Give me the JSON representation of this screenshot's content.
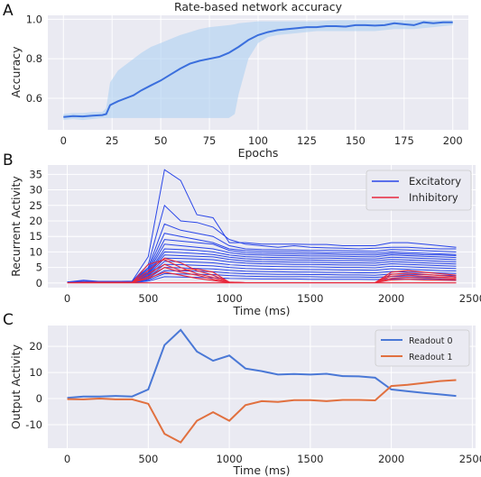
{
  "panels": [
    "A",
    "B",
    "C"
  ],
  "chart_data": [
    {
      "id": "A",
      "type": "line",
      "title": "Rate-based network accuracy",
      "xlabel": "Epochs",
      "ylabel": "Accuracy",
      "xlim": [
        -8,
        208
      ],
      "ylim": [
        0.44,
        1.02
      ],
      "xticks": [
        0,
        25,
        50,
        75,
        100,
        125,
        150,
        175,
        200
      ],
      "yticks": [
        0.6,
        0.8,
        1.0
      ],
      "ytick_labels": [
        "0.6",
        "0.8",
        "1.0"
      ],
      "grid": true,
      "series": [
        {
          "color": "#3b6fdd",
          "x": [
            0,
            5,
            10,
            15,
            20,
            22,
            24,
            28,
            32,
            36,
            40,
            45,
            50,
            55,
            60,
            65,
            70,
            75,
            80,
            85,
            90,
            95,
            100,
            105,
            110,
            115,
            120,
            125,
            130,
            135,
            140,
            145,
            150,
            155,
            160,
            165,
            170,
            175,
            180,
            185,
            190,
            195,
            200
          ],
          "y": [
            0.505,
            0.51,
            0.508,
            0.512,
            0.515,
            0.52,
            0.565,
            0.585,
            0.6,
            0.615,
            0.64,
            0.665,
            0.69,
            0.72,
            0.75,
            0.775,
            0.79,
            0.8,
            0.81,
            0.83,
            0.86,
            0.895,
            0.92,
            0.935,
            0.945,
            0.95,
            0.955,
            0.96,
            0.96,
            0.965,
            0.965,
            0.963,
            0.97,
            0.97,
            0.968,
            0.97,
            0.98,
            0.975,
            0.97,
            0.985,
            0.98,
            0.985,
            0.985
          ],
          "band_x": [
            0,
            5,
            10,
            15,
            20,
            22,
            24,
            28,
            32,
            36,
            40,
            45,
            50,
            55,
            60,
            65,
            70,
            75,
            80,
            85,
            88,
            90,
            95,
            100,
            105,
            110,
            120,
            130,
            140,
            150,
            160,
            170,
            180,
            190,
            200
          ],
          "band_lo": [
            0.49,
            0.495,
            0.49,
            0.495,
            0.5,
            0.5,
            0.5,
            0.5,
            0.5,
            0.5,
            0.5,
            0.5,
            0.5,
            0.5,
            0.5,
            0.5,
            0.5,
            0.5,
            0.5,
            0.5,
            0.52,
            0.62,
            0.8,
            0.88,
            0.91,
            0.92,
            0.93,
            0.94,
            0.94,
            0.94,
            0.94,
            0.95,
            0.95,
            0.96,
            0.97
          ],
          "band_hi": [
            0.52,
            0.525,
            0.525,
            0.53,
            0.53,
            0.55,
            0.68,
            0.74,
            0.77,
            0.8,
            0.83,
            0.86,
            0.88,
            0.9,
            0.92,
            0.935,
            0.95,
            0.96,
            0.965,
            0.97,
            0.975,
            0.98,
            0.985,
            0.99,
            0.99,
            0.99,
            0.99,
            0.99,
            0.995,
            0.995,
            0.995,
            0.995,
            0.995,
            0.995,
            0.995
          ]
        }
      ]
    },
    {
      "id": "B",
      "type": "line",
      "xlabel": "Time (ms)",
      "ylabel": "Recurrent Activity",
      "xlim": [
        -120,
        2520
      ],
      "ylim": [
        -1.5,
        38
      ],
      "xticks": [
        0,
        500,
        1000,
        1500,
        2000,
        2500
      ],
      "yticks": [
        0,
        5,
        10,
        15,
        20,
        25,
        30,
        35
      ],
      "grid": true,
      "legend": "top-right",
      "x": [
        0,
        100,
        200,
        300,
        400,
        500,
        600,
        700,
        800,
        900,
        1000,
        1100,
        1200,
        1300,
        1400,
        1500,
        1600,
        1700,
        1800,
        1900,
        2000,
        2100,
        2200,
        2300,
        2400
      ],
      "series": [
        {
          "name": "Excitatory",
          "color": "#2a46e8",
          "values": [
            0.3,
            0.9,
            0.5,
            0.5,
            0.6,
            8.5,
            36.5,
            33,
            22,
            21,
            13,
            13,
            12.5,
            12.5,
            12.5,
            12.4,
            12.4,
            12,
            12,
            12,
            13,
            13,
            12.5,
            12,
            11.5
          ]
        },
        {
          "color": "#2a46e8",
          "values": [
            0.3,
            0.5,
            0.5,
            0.5,
            0.5,
            6,
            25,
            20,
            19.5,
            18,
            14,
            12.5,
            12,
            11.5,
            12,
            11.5,
            11.3,
            11.2,
            11,
            11.2,
            11.5,
            11.5,
            11.2,
            11,
            11
          ]
        },
        {
          "color": "#2a46e8",
          "values": [
            0.3,
            0.5,
            0.5,
            0.5,
            0.5,
            5,
            19,
            17,
            16,
            15,
            12,
            11,
            10.8,
            10.7,
            10.6,
            10.5,
            10.5,
            10.4,
            10.3,
            10.2,
            10.8,
            10.6,
            10.4,
            10.2,
            10
          ]
        },
        {
          "color": "#2a46e8",
          "values": [
            0.3,
            0.5,
            0.5,
            0.5,
            0.5,
            4.5,
            16,
            15,
            14,
            13,
            11,
            10.4,
            10.2,
            10.1,
            10,
            9.9,
            9.8,
            9.8,
            9.7,
            9.6,
            10,
            9.8,
            9.6,
            9.4,
            9.2
          ]
        },
        {
          "color": "#2a46e8",
          "values": [
            0.3,
            0.5,
            0.5,
            0.5,
            0.5,
            4,
            14,
            13.5,
            13,
            12.5,
            10.5,
            9.8,
            9.6,
            9.5,
            9.4,
            9.3,
            9.3,
            9.2,
            9.1,
            9,
            9.5,
            9.3,
            9.1,
            9,
            8.8
          ]
        },
        {
          "color": "#2a46e8",
          "values": [
            0.3,
            0.5,
            0.5,
            0.5,
            0.5,
            3.5,
            12.5,
            12,
            11.5,
            11,
            9.8,
            9.2,
            9,
            8.9,
            8.8,
            8.7,
            8.7,
            8.6,
            8.5,
            8.4,
            9,
            8.8,
            8.6,
            8.4,
            8.2
          ]
        },
        {
          "color": "#2a46e8",
          "values": [
            0.3,
            0.5,
            0.5,
            0.5,
            0.5,
            3.2,
            11,
            10.8,
            10.5,
            10,
            9,
            8.5,
            8.3,
            8.2,
            8.1,
            8,
            8,
            7.9,
            7.8,
            7.7,
            8.3,
            8.1,
            7.9,
            7.7,
            7.5
          ]
        },
        {
          "color": "#2a46e8",
          "values": [
            0.3,
            0.4,
            0.4,
            0.4,
            0.4,
            3,
            10,
            9.8,
            9.5,
            9.2,
            8.3,
            7.8,
            7.6,
            7.5,
            7.4,
            7.4,
            7.3,
            7.2,
            7.2,
            7.1,
            7.6,
            7.4,
            7.2,
            7,
            6.8
          ]
        },
        {
          "color": "#2a46e8",
          "values": [
            0.3,
            0.4,
            0.4,
            0.4,
            0.4,
            2.7,
            9,
            8.8,
            8.6,
            8.4,
            7.6,
            7.1,
            6.9,
            6.8,
            6.7,
            6.7,
            6.6,
            6.5,
            6.5,
            6.4,
            6.9,
            6.7,
            6.5,
            6.3,
            6.1
          ]
        },
        {
          "color": "#2a46e8",
          "values": [
            0.3,
            0.4,
            0.4,
            0.4,
            0.4,
            2.4,
            8,
            7.9,
            7.7,
            7.5,
            6.8,
            6.4,
            6.2,
            6.1,
            6,
            6,
            5.9,
            5.8,
            5.8,
            5.7,
            6.2,
            6,
            5.8,
            5.6,
            5.4
          ]
        },
        {
          "color": "#2a46e8",
          "values": [
            0.2,
            0.3,
            0.3,
            0.3,
            0.3,
            2.1,
            7,
            6.9,
            6.7,
            6.5,
            5.9,
            5.6,
            5.4,
            5.3,
            5.2,
            5.2,
            5.1,
            5,
            5,
            4.9,
            5.4,
            5.2,
            5,
            4.8,
            4.7
          ]
        },
        {
          "color": "#2a46e8",
          "values": [
            0.2,
            0.3,
            0.3,
            0.3,
            0.3,
            1.8,
            6,
            5.9,
            5.7,
            5.5,
            5,
            4.7,
            4.5,
            4.4,
            4.4,
            4.3,
            4.3,
            4.2,
            4.2,
            4.1,
            4.6,
            4.4,
            4.2,
            4,
            3.9
          ]
        },
        {
          "color": "#2a46e8",
          "values": [
            0.2,
            0.3,
            0.3,
            0.3,
            0.3,
            1.5,
            5,
            4.9,
            4.7,
            4.5,
            4.1,
            3.8,
            3.7,
            3.6,
            3.5,
            3.5,
            3.4,
            3.4,
            3.3,
            3.3,
            3.7,
            3.5,
            3.4,
            3.2,
            3.1
          ]
        },
        {
          "color": "#2a46e8",
          "values": [
            0.2,
            0.2,
            0.2,
            0.2,
            0.2,
            1.2,
            4,
            3.9,
            3.8,
            3.6,
            3.2,
            3,
            2.9,
            2.8,
            2.8,
            2.7,
            2.7,
            2.6,
            2.6,
            2.5,
            2.9,
            2.8,
            2.7,
            2.5,
            2.4
          ]
        },
        {
          "color": "#2a46e8",
          "values": [
            0.1,
            0.2,
            0.2,
            0.2,
            0.2,
            0.9,
            3,
            2.9,
            2.8,
            2.7,
            2.4,
            2.2,
            2.1,
            2,
            2,
            2,
            1.9,
            1.9,
            1.9,
            1.8,
            2.1,
            2,
            1.9,
            1.8,
            1.7
          ]
        },
        {
          "color": "#2a46e8",
          "values": [
            0.1,
            0.1,
            0.1,
            0.1,
            0.1,
            0.6,
            2,
            1.9,
            1.8,
            1.7,
            1.5,
            1.4,
            1.3,
            1.3,
            1.3,
            1.2,
            1.2,
            1.2,
            1.2,
            1.1,
            1.3,
            1.3,
            1.2,
            1.1,
            1
          ]
        },
        {
          "name": "Inhibitory",
          "color": "#e8283c",
          "values": [
            0.1,
            0.2,
            0.2,
            0.2,
            0.2,
            4,
            8,
            6.5,
            4,
            2.5,
            0.3,
            0.1,
            0.1,
            0.1,
            0.1,
            0.1,
            0.1,
            0.1,
            0.1,
            0.1,
            3.5,
            4,
            3.5,
            3,
            2.5
          ]
        },
        {
          "color": "#e8283c",
          "values": [
            0.1,
            0.1,
            0.1,
            0.1,
            0.1,
            6,
            7.5,
            5,
            3,
            1.8,
            0.2,
            0.1,
            0.1,
            0.1,
            0.1,
            0.1,
            0.1,
            0.1,
            0.1,
            0.1,
            2.8,
            3.2,
            2.8,
            2.4,
            2
          ]
        },
        {
          "color": "#e8283c",
          "values": [
            0.1,
            0.1,
            0.1,
            0.1,
            0.1,
            3,
            6,
            4,
            4.5,
            3.5,
            0.2,
            0.1,
            0.1,
            0.1,
            0.1,
            0.1,
            0.1,
            0.1,
            0.1,
            0.1,
            2.2,
            2.5,
            2.2,
            1.9,
            1.6
          ]
        },
        {
          "color": "#e8283c",
          "values": [
            0.1,
            0.1,
            0.1,
            0.1,
            0.1,
            2,
            5,
            3.5,
            2.5,
            1.2,
            0.1,
            0.1,
            0.1,
            0.1,
            0.1,
            0.1,
            0.1,
            0.1,
            0.1,
            0.1,
            1.5,
            1.8,
            1.6,
            1.4,
            1.2
          ]
        },
        {
          "color": "#e8283c",
          "values": [
            0.1,
            0.1,
            0.1,
            0.1,
            0.1,
            1.5,
            3.5,
            2.5,
            1.5,
            0.8,
            0.1,
            0.1,
            0.1,
            0.1,
            0.1,
            0.1,
            0.1,
            0.1,
            0.1,
            0.1,
            1,
            1.2,
            1,
            0.9,
            0.8
          ]
        },
        {
          "color": "#e8283c",
          "values": [
            0.05,
            0.05,
            0.05,
            0.05,
            0.05,
            0.05,
            0.05,
            0.05,
            0.05,
            0.05,
            0.05,
            0.05,
            0.05,
            0.05,
            0.05,
            0.05,
            0.05,
            0.05,
            0.05,
            0.05,
            0.05,
            0.05,
            0.05,
            0.05,
            0.05
          ]
        }
      ]
    },
    {
      "id": "C",
      "type": "line",
      "xlabel": "Time (ms)",
      "ylabel": "Output Activity",
      "xlim": [
        -120,
        2520
      ],
      "ylim": [
        -19,
        28
      ],
      "xticks": [
        0,
        500,
        1000,
        1500,
        2000,
        2500
      ],
      "yticks": [
        -10,
        0,
        10,
        20
      ],
      "grid": true,
      "legend": "top-right",
      "x": [
        0,
        100,
        200,
        300,
        400,
        500,
        600,
        700,
        800,
        900,
        1000,
        1100,
        1200,
        1300,
        1400,
        1500,
        1600,
        1700,
        1800,
        1900,
        2000,
        2100,
        2200,
        2300,
        2400
      ],
      "series": [
        {
          "name": "Readout 0",
          "color": "#4a78d6",
          "values": [
            0.3,
            0.8,
            0.8,
            1,
            0.8,
            3.5,
            20.5,
            26.3,
            18,
            14.5,
            16.5,
            11.5,
            10.5,
            9.2,
            9.4,
            9.2,
            9.5,
            8.6,
            8.5,
            8,
            3.5,
            2.8,
            2.2,
            1.6,
            1
          ]
        },
        {
          "name": "Readout 1",
          "color": "#e1703f",
          "values": [
            -0.2,
            -0.3,
            0,
            -0.3,
            -0.3,
            -2,
            -13.5,
            -16.8,
            -8.5,
            -5.2,
            -8.5,
            -2.5,
            -1,
            -1.3,
            -0.6,
            -0.6,
            -1,
            -0.5,
            -0.5,
            -0.7,
            4.8,
            5.3,
            6,
            6.7,
            7.1
          ]
        }
      ]
    }
  ]
}
